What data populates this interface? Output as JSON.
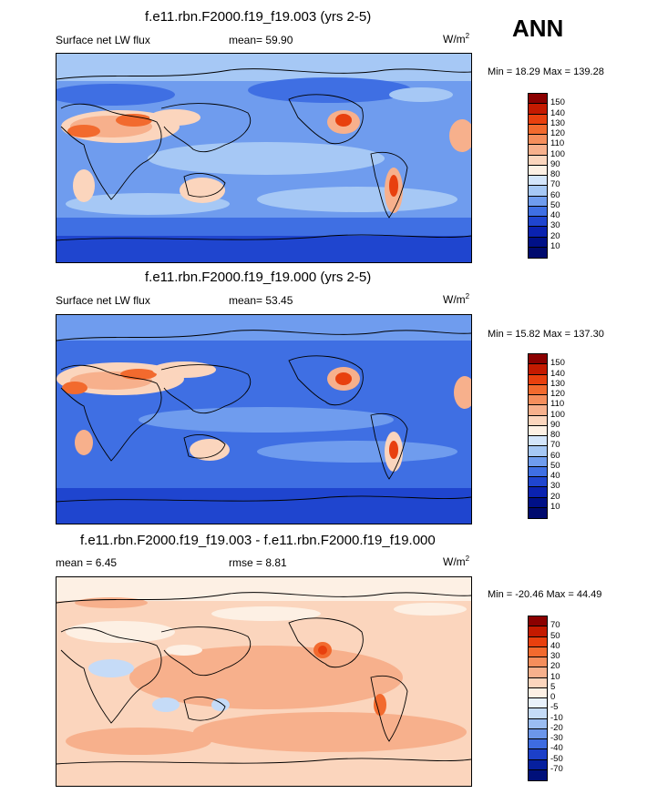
{
  "season": "ANN",
  "units_base": "W/m",
  "units_exp": "2",
  "panels": [
    {
      "title": "f.e11.rbn.F2000.f19_f19.003 (yrs 2-5)",
      "left_label": "Surface net LW flux",
      "center_label": "mean=  59.90",
      "minmax": "Min =  18.29 Max = 139.28",
      "levels": [
        "150",
        "140",
        "130",
        "120",
        "110",
        "100",
        "90",
        "80",
        "70",
        "60",
        "50",
        "40",
        "30",
        "20",
        "10"
      ],
      "palette": "abs"
    },
    {
      "title": "f.e11.rbn.F2000.f19_f19.000 (yrs 2-5)",
      "left_label": "Surface net LW flux",
      "center_label": "mean=  53.45",
      "minmax": "Min =  15.82 Max = 137.30",
      "levels": [
        "150",
        "140",
        "130",
        "120",
        "110",
        "100",
        "90",
        "80",
        "70",
        "60",
        "50",
        "40",
        "30",
        "20",
        "10"
      ],
      "palette": "abs"
    },
    {
      "title": "f.e11.rbn.F2000.f19_f19.003 - f.e11.rbn.F2000.f19_f19.000",
      "left_label": "mean =   6.45",
      "center_label": "rmse =   8.81",
      "minmax": "Min = -20.46 Max =  44.49",
      "levels": [
        "70",
        "50",
        "40",
        "30",
        "20",
        "10",
        "5",
        "0",
        "-5",
        "-10",
        "-20",
        "-30",
        "-40",
        "-50",
        "-70"
      ],
      "palette": "diff"
    }
  ],
  "colors": {
    "abs": [
      "#8b0000",
      "#c41a00",
      "#e8400e",
      "#f26a2e",
      "#f58e5c",
      "#f7b08c",
      "#fbd5bd",
      "#fdf0e4",
      "#d3e5fb",
      "#a6c8f5",
      "#6f9cee",
      "#3f6fe3",
      "#1f45cf",
      "#0a22b0",
      "#001087",
      "#000a6e"
    ],
    "diff": [
      "#8b0000",
      "#c41a00",
      "#e8400e",
      "#f26a2e",
      "#f58e5c",
      "#f7b08c",
      "#fbd5bd",
      "#fdf0e4",
      "#e8f1fc",
      "#c5dbf7",
      "#9bbdf2",
      "#6c96ea",
      "#3e6ce0",
      "#1c40c8",
      "#06209e",
      "#00107a"
    ]
  }
}
